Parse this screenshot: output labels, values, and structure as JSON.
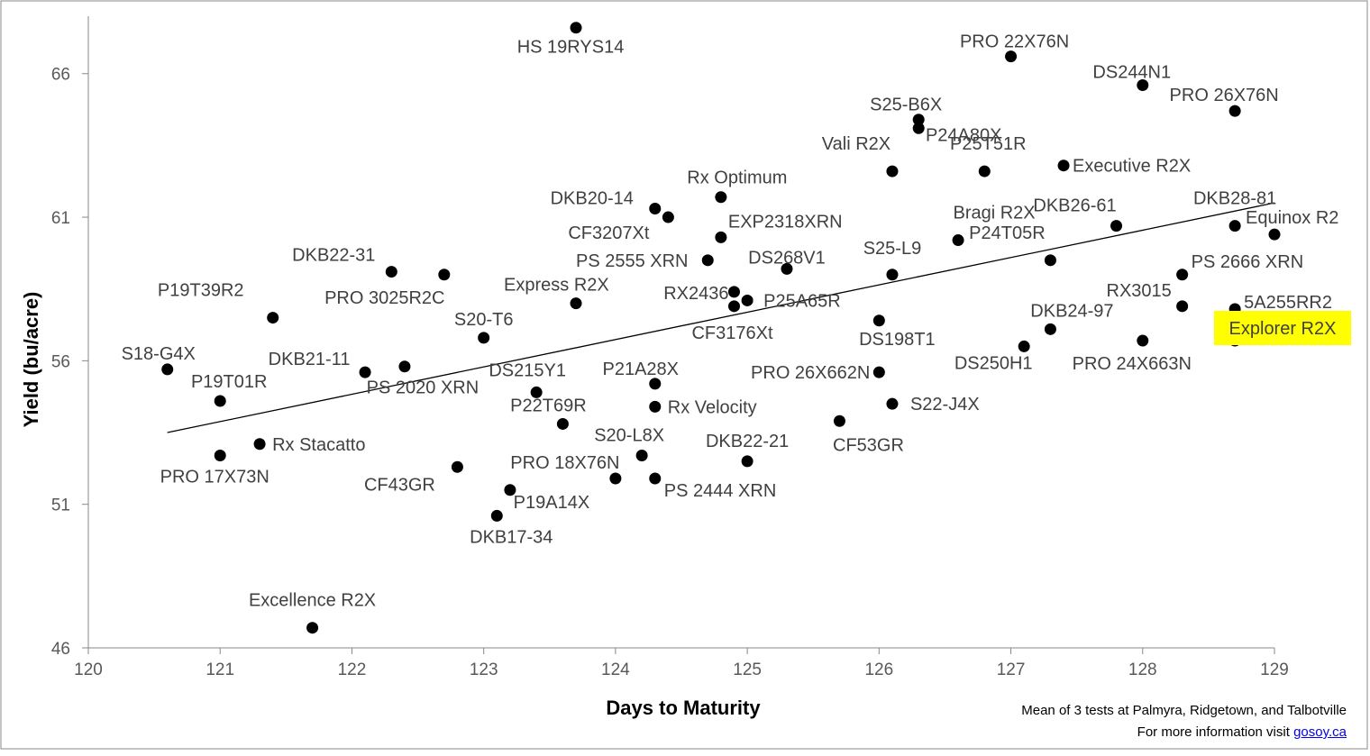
{
  "chart_data": {
    "type": "scatter",
    "title": "",
    "xlabel": "Days to Maturity",
    "ylabel": "Yield (bu/acre)",
    "xlim": [
      120,
      129
    ],
    "ylim": [
      46,
      68
    ],
    "xticks": [
      "120",
      "121",
      "122",
      "123",
      "124",
      "125",
      "126",
      "127",
      "128",
      "129"
    ],
    "yticks": [
      "46",
      "51",
      "56",
      "61",
      "66"
    ],
    "grid": false,
    "legend": "none",
    "trendline": {
      "type": "linear",
      "x": [
        120.6,
        129
      ],
      "y": [
        53.5,
        61.5
      ]
    },
    "points": [
      {
        "name": "HS 19RYS14",
        "x": 123.7,
        "y": 67.6
      },
      {
        "name": "PRO 22X76N",
        "x": 127.0,
        "y": 66.6
      },
      {
        "name": "DS244N1",
        "x": 128.0,
        "y": 65.6
      },
      {
        "name": "PRO 26X76N",
        "x": 128.7,
        "y": 64.7
      },
      {
        "name": "S25-B6X",
        "x": 126.3,
        "y": 64.4
      },
      {
        "name": "P24A80X",
        "x": 126.3,
        "y": 64.1
      },
      {
        "name": "Vali R2X",
        "x": 126.1,
        "y": 62.6
      },
      {
        "name": "P25T51R",
        "x": 126.8,
        "y": 62.6
      },
      {
        "name": "Executive R2X",
        "x": 127.4,
        "y": 62.8
      },
      {
        "name": "Rx Optimum",
        "x": 124.8,
        "y": 61.7
      },
      {
        "name": "DKB20-14",
        "x": 124.3,
        "y": 61.3
      },
      {
        "name": "CF3207Xt",
        "x": 124.4,
        "y": 61.0
      },
      {
        "name": "DKB26-61",
        "x": 127.8,
        "y": 60.7
      },
      {
        "name": "DKB28-81",
        "x": 128.7,
        "y": 60.7
      },
      {
        "name": "Equinox R2",
        "x": 129.0,
        "y": 60.4
      },
      {
        "name": "Bragi R2X",
        "x": 126.6,
        "y": 60.2
      },
      {
        "name": "EXP2318XRN",
        "x": 124.8,
        "y": 60.3
      },
      {
        "name": "P24T05R",
        "x": 127.3,
        "y": 59.5
      },
      {
        "name": "PS 2555 XRN",
        "x": 124.7,
        "y": 59.5
      },
      {
        "name": "DS268V1",
        "x": 125.3,
        "y": 59.2
      },
      {
        "name": "S25-L9",
        "x": 126.1,
        "y": 59.0
      },
      {
        "name": "PS 2666 XRN",
        "x": 128.3,
        "y": 59.0
      },
      {
        "name": "DKB22-31",
        "x": 122.3,
        "y": 59.1
      },
      {
        "name": "PRO 3025R2C",
        "x": 122.7,
        "y": 59.0
      },
      {
        "name": "Express R2X",
        "x": 123.7,
        "y": 58.0
      },
      {
        "name": "RX2436",
        "x": 124.9,
        "y": 58.4
      },
      {
        "name": "P25A65R",
        "x": 125.0,
        "y": 58.1
      },
      {
        "name": "CF3176Xt",
        "x": 124.9,
        "y": 57.9
      },
      {
        "name": "RX3015",
        "x": 128.3,
        "y": 57.9
      },
      {
        "name": "5A255RR2",
        "x": 128.7,
        "y": 57.8
      },
      {
        "name": "P19T39R2",
        "x": 121.4,
        "y": 57.5
      },
      {
        "name": "DS198T1",
        "x": 126.0,
        "y": 57.4
      },
      {
        "name": "DKB24-97",
        "x": 127.3,
        "y": 57.1
      },
      {
        "name": "Explorer R2X",
        "x": 128.7,
        "y": 56.7,
        "highlight": true
      },
      {
        "name": "S20-T6",
        "x": 123.0,
        "y": 56.8
      },
      {
        "name": "DS250H1",
        "x": 127.1,
        "y": 56.5
      },
      {
        "name": "PRO 24X663N",
        "x": 128.0,
        "y": 56.7
      },
      {
        "name": "S18-G4X",
        "x": 120.6,
        "y": 55.7
      },
      {
        "name": "DKB21-11",
        "x": 122.1,
        "y": 55.6
      },
      {
        "name": "PS 2020 XRN",
        "x": 122.4,
        "y": 55.8
      },
      {
        "name": "PRO 26X662N",
        "x": 126.0,
        "y": 55.6
      },
      {
        "name": "DS215Y1",
        "x": 123.4,
        "y": 54.9
      },
      {
        "name": "P21A28X",
        "x": 124.3,
        "y": 55.2
      },
      {
        "name": "P19T01R",
        "x": 121.0,
        "y": 54.6
      },
      {
        "name": "Rx Velocity",
        "x": 124.3,
        "y": 54.4
      },
      {
        "name": "S22-J4X",
        "x": 126.1,
        "y": 54.5
      },
      {
        "name": "P22T69R",
        "x": 123.6,
        "y": 53.8
      },
      {
        "name": "CF53GR",
        "x": 125.7,
        "y": 53.9
      },
      {
        "name": "Rx Stacatto",
        "x": 121.3,
        "y": 53.1
      },
      {
        "name": "PRO 17X73N",
        "x": 121.0,
        "y": 52.7
      },
      {
        "name": "S20-L8X",
        "x": 124.2,
        "y": 52.7
      },
      {
        "name": "DKB22-21",
        "x": 125.0,
        "y": 52.5
      },
      {
        "name": "CF43GR",
        "x": 122.8,
        "y": 52.3
      },
      {
        "name": "PRO 18X76N",
        "x": 124.0,
        "y": 51.9
      },
      {
        "name": "PS 2444 XRN",
        "x": 124.3,
        "y": 51.9
      },
      {
        "name": "P19A14X",
        "x": 123.2,
        "y": 51.5
      },
      {
        "name": "DKB17-34",
        "x": 123.1,
        "y": 50.6
      },
      {
        "name": "Excellence R2X",
        "x": 121.7,
        "y": 46.7
      }
    ],
    "highlight_color": "#ffff00"
  },
  "footer": {
    "note": "Mean of 3 tests at Palmyra, Ridgetown, and Talbotville",
    "info_prefix": "For more information visit ",
    "link_text": "gosoy.ca"
  }
}
